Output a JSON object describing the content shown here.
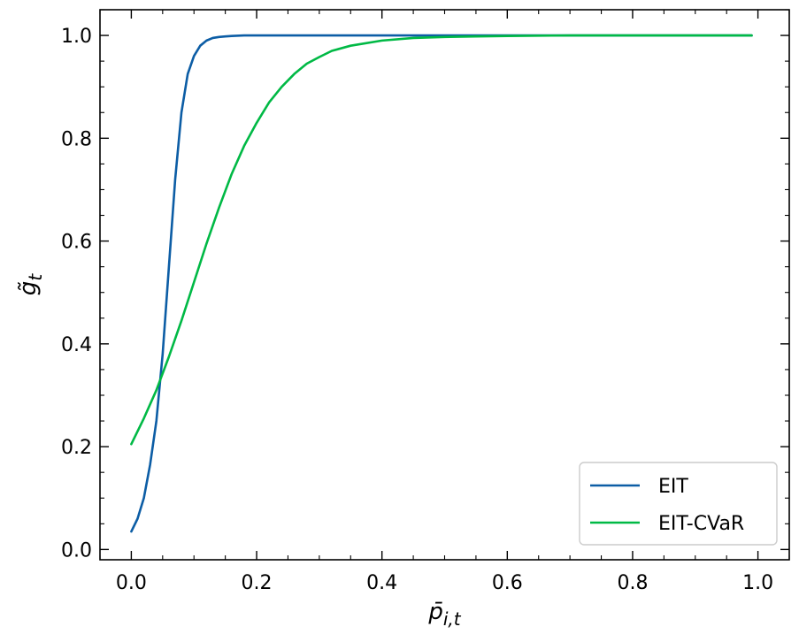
{
  "chart_data": {
    "type": "line",
    "xlabel": "p̄_{i,t}",
    "ylabel": "g̃_t",
    "xlim": [
      -0.05,
      1.05
    ],
    "ylim": [
      -0.02,
      1.05
    ],
    "xticks": [
      0.0,
      0.2,
      0.4,
      0.6,
      0.8,
      1.0
    ],
    "xtick_labels": [
      "0.0",
      "0.2",
      "0.4",
      "0.6",
      "0.8",
      "1.0"
    ],
    "yticks": [
      0.0,
      0.2,
      0.4,
      0.6,
      0.8,
      1.0
    ],
    "ytick_labels": [
      "0.0",
      "0.2",
      "0.4",
      "0.6",
      "0.8",
      "1.0"
    ],
    "grid": false,
    "legend_position": "bottom-right",
    "series": [
      {
        "name": "EIT",
        "color": "#0c5da5",
        "x": [
          0.0,
          0.01,
          0.02,
          0.03,
          0.04,
          0.05,
          0.06,
          0.07,
          0.08,
          0.09,
          0.1,
          0.11,
          0.12,
          0.13,
          0.14,
          0.15,
          0.16,
          0.18,
          0.2,
          0.25,
          0.3,
          0.4,
          0.5,
          0.6,
          0.7,
          0.8,
          0.9,
          0.99
        ],
        "y": [
          0.035,
          0.06,
          0.1,
          0.165,
          0.25,
          0.38,
          0.55,
          0.72,
          0.85,
          0.925,
          0.96,
          0.98,
          0.99,
          0.995,
          0.997,
          0.998,
          0.999,
          1.0,
          1.0,
          1.0,
          1.0,
          1.0,
          1.0,
          1.0,
          1.0,
          1.0,
          1.0,
          1.0
        ]
      },
      {
        "name": "EIT-CVaR",
        "color": "#00b945",
        "x": [
          0.0,
          0.02,
          0.04,
          0.06,
          0.08,
          0.1,
          0.12,
          0.14,
          0.16,
          0.18,
          0.2,
          0.22,
          0.24,
          0.26,
          0.28,
          0.3,
          0.32,
          0.35,
          0.4,
          0.45,
          0.5,
          0.55,
          0.6,
          0.7,
          0.8,
          0.9,
          0.99
        ],
        "y": [
          0.205,
          0.255,
          0.31,
          0.375,
          0.445,
          0.52,
          0.595,
          0.665,
          0.73,
          0.785,
          0.83,
          0.87,
          0.9,
          0.925,
          0.945,
          0.958,
          0.97,
          0.98,
          0.99,
          0.995,
          0.997,
          0.998,
          0.999,
          1.0,
          1.0,
          1.0,
          1.0
        ]
      }
    ]
  }
}
